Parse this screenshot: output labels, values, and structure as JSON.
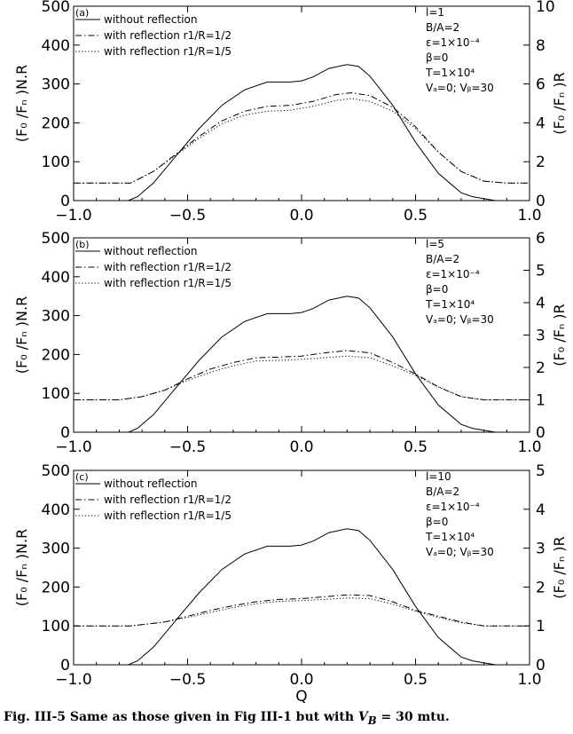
{
  "caption": {
    "prefix": "Fig. III-5 Same as those given in Fig III-1 but with ",
    "var_main": "V",
    "var_sub": "B",
    "suffix": " = 30 mtu."
  },
  "x_axis": {
    "label": "Q",
    "ticks": [
      -1.0,
      -0.5,
      0.0,
      0.5,
      1.0
    ],
    "tick_labels": [
      "−1.0",
      "−0.5",
      "0.0",
      "0.5",
      "1.0"
    ],
    "range": [
      -1.0,
      1.0
    ]
  },
  "legend_entries": [
    "without reflection",
    "with reflection r1/R=1/2",
    "with reflection r1/R=1/5"
  ],
  "chart_data": [
    {
      "type": "line",
      "panel_label": "(a)",
      "ylabel_left": "(F₀ /Fₙ )N.R",
      "ylabel_right": "(F₀ /Fₙ )R",
      "ylim_left": [
        0,
        500
      ],
      "ylim_right": [
        0,
        10
      ],
      "yticks_left": [
        0,
        100,
        200,
        300,
        400,
        500
      ],
      "yticks_right": [
        0,
        2,
        4,
        6,
        8,
        10
      ],
      "params": [
        "l=1",
        "B/A=2",
        "ε=1×10⁻⁴",
        "β=0",
        "T=1×10⁴",
        "Vₐ=0; Vᵦ=30"
      ],
      "series": [
        {
          "name": "without reflection",
          "axis": "left",
          "style": "solid",
          "x": [
            -1.0,
            -0.76,
            -0.72,
            -0.65,
            -0.55,
            -0.45,
            -0.35,
            -0.25,
            -0.15,
            -0.05,
            0.0,
            0.05,
            0.12,
            0.2,
            0.25,
            0.3,
            0.4,
            0.5,
            0.6,
            0.7,
            0.75,
            0.85,
            0.87,
            1.0
          ],
          "y": [
            0,
            0,
            10,
            45,
            115,
            185,
            245,
            285,
            305,
            305,
            308,
            318,
            340,
            350,
            345,
            320,
            245,
            150,
            70,
            20,
            10,
            0,
            0,
            0
          ]
        },
        {
          "name": "with reflection r1/R=1/2",
          "axis": "right",
          "style": "dashdot",
          "x": [
            -1.0,
            -0.75,
            -0.65,
            -0.55,
            -0.45,
            -0.35,
            -0.25,
            -0.15,
            -0.05,
            0.05,
            0.15,
            0.22,
            0.3,
            0.4,
            0.5,
            0.6,
            0.7,
            0.8,
            0.9,
            1.0
          ],
          "y": [
            0.9,
            0.9,
            1.5,
            2.4,
            3.3,
            4.1,
            4.6,
            4.85,
            4.9,
            5.1,
            5.45,
            5.55,
            5.4,
            4.8,
            3.8,
            2.5,
            1.5,
            1.0,
            0.9,
            0.9
          ]
        },
        {
          "name": "with reflection r1/R=1/5",
          "axis": "right",
          "style": "dotted",
          "x": [
            -1.0,
            -0.75,
            -0.65,
            -0.55,
            -0.45,
            -0.35,
            -0.25,
            -0.15,
            -0.05,
            0.05,
            0.15,
            0.22,
            0.3,
            0.4,
            0.5,
            0.6,
            0.7,
            0.8,
            0.9,
            1.0
          ],
          "y": [
            0.9,
            0.9,
            1.5,
            2.35,
            3.2,
            3.95,
            4.4,
            4.6,
            4.65,
            4.85,
            5.15,
            5.25,
            5.1,
            4.6,
            3.7,
            2.5,
            1.5,
            1.0,
            0.9,
            0.9
          ]
        }
      ]
    },
    {
      "type": "line",
      "panel_label": "(b)",
      "ylabel_left": "(F₀ /Fₙ )N.R",
      "ylabel_right": "(F₀ /Fₙ )R",
      "ylim_left": [
        0,
        500
      ],
      "ylim_right": [
        0,
        6
      ],
      "yticks_left": [
        0,
        100,
        200,
        300,
        400,
        500
      ],
      "yticks_right": [
        0,
        1,
        2,
        3,
        4,
        5,
        6
      ],
      "params": [
        "l=5",
        "B/A=2",
        "ε=1×10⁻⁴",
        "β=0",
        "T=1×10⁴",
        "Vₐ=0; Vᵦ=30"
      ],
      "series": [
        {
          "name": "without reflection",
          "axis": "left",
          "style": "solid",
          "x": [
            -1.0,
            -0.76,
            -0.72,
            -0.65,
            -0.55,
            -0.45,
            -0.35,
            -0.25,
            -0.15,
            -0.05,
            0.0,
            0.05,
            0.12,
            0.2,
            0.25,
            0.3,
            0.4,
            0.5,
            0.6,
            0.7,
            0.75,
            0.85,
            0.87,
            1.0
          ],
          "y": [
            0,
            0,
            10,
            45,
            115,
            185,
            245,
            285,
            305,
            305,
            308,
            318,
            340,
            350,
            345,
            320,
            245,
            150,
            70,
            20,
            10,
            0,
            0,
            0
          ]
        },
        {
          "name": "with reflection r1/R=1/2",
          "axis": "right",
          "style": "dashdot",
          "x": [
            -1.0,
            -0.8,
            -0.7,
            -0.6,
            -0.5,
            -0.4,
            -0.3,
            -0.2,
            -0.1,
            0.0,
            0.1,
            0.2,
            0.3,
            0.4,
            0.5,
            0.6,
            0.7,
            0.8,
            1.0
          ],
          "y": [
            1.0,
            1.0,
            1.1,
            1.3,
            1.65,
            1.95,
            2.15,
            2.3,
            2.32,
            2.35,
            2.45,
            2.52,
            2.45,
            2.15,
            1.8,
            1.4,
            1.1,
            1.0,
            1.0
          ]
        },
        {
          "name": "with reflection r1/R=1/5",
          "axis": "right",
          "style": "dotted",
          "x": [
            -1.0,
            -0.8,
            -0.7,
            -0.6,
            -0.5,
            -0.4,
            -0.3,
            -0.2,
            -0.1,
            0.0,
            0.1,
            0.2,
            0.3,
            0.4,
            0.5,
            0.6,
            0.7,
            0.8,
            1.0
          ],
          "y": [
            1.0,
            1.0,
            1.1,
            1.3,
            1.6,
            1.85,
            2.05,
            2.2,
            2.22,
            2.25,
            2.3,
            2.35,
            2.3,
            2.05,
            1.75,
            1.4,
            1.1,
            1.0,
            1.0
          ]
        }
      ]
    },
    {
      "type": "line",
      "panel_label": "(c)",
      "ylabel_left": "(F₀ /Fₙ )N.R",
      "ylabel_right": "(F₀ /Fₙ )R",
      "ylim_left": [
        0,
        500
      ],
      "ylim_right": [
        0,
        5
      ],
      "yticks_left": [
        0,
        100,
        200,
        300,
        400,
        500
      ],
      "yticks_right": [
        0,
        1,
        2,
        3,
        4,
        5
      ],
      "params": [
        "l=10",
        "B/A=2",
        "ε=1×10⁻⁴",
        "β=0",
        "T=1×10⁴",
        "Vₐ=0; Vᵦ=30"
      ],
      "series": [
        {
          "name": "without reflection",
          "axis": "left",
          "style": "solid",
          "x": [
            -1.0,
            -0.76,
            -0.72,
            -0.65,
            -0.55,
            -0.45,
            -0.35,
            -0.25,
            -0.15,
            -0.05,
            0.0,
            0.05,
            0.12,
            0.2,
            0.25,
            0.3,
            0.4,
            0.5,
            0.6,
            0.7,
            0.75,
            0.85,
            0.87,
            1.0
          ],
          "y": [
            0,
            0,
            10,
            45,
            115,
            185,
            245,
            285,
            305,
            305,
            308,
            318,
            340,
            350,
            345,
            320,
            245,
            150,
            70,
            20,
            10,
            0,
            0,
            0
          ]
        },
        {
          "name": "with reflection r1/R=1/2",
          "axis": "right",
          "style": "dashdot",
          "x": [
            -1.0,
            -0.75,
            -0.6,
            -0.5,
            -0.4,
            -0.3,
            -0.2,
            -0.1,
            0.0,
            0.1,
            0.2,
            0.3,
            0.4,
            0.5,
            0.6,
            0.7,
            0.8,
            1.0
          ],
          "y": [
            1.0,
            1.0,
            1.1,
            1.25,
            1.4,
            1.52,
            1.62,
            1.68,
            1.7,
            1.75,
            1.8,
            1.78,
            1.62,
            1.4,
            1.25,
            1.1,
            1.0,
            1.0
          ]
        },
        {
          "name": "with reflection r1/R=1/5",
          "axis": "right",
          "style": "dotted",
          "x": [
            -1.0,
            -0.75,
            -0.6,
            -0.5,
            -0.4,
            -0.3,
            -0.2,
            -0.1,
            0.0,
            0.1,
            0.2,
            0.3,
            0.4,
            0.5,
            0.6,
            0.7,
            0.8,
            1.0
          ],
          "y": [
            1.0,
            1.0,
            1.1,
            1.22,
            1.35,
            1.47,
            1.57,
            1.63,
            1.65,
            1.68,
            1.72,
            1.7,
            1.56,
            1.38,
            1.22,
            1.08,
            1.0,
            1.0
          ]
        }
      ]
    }
  ]
}
